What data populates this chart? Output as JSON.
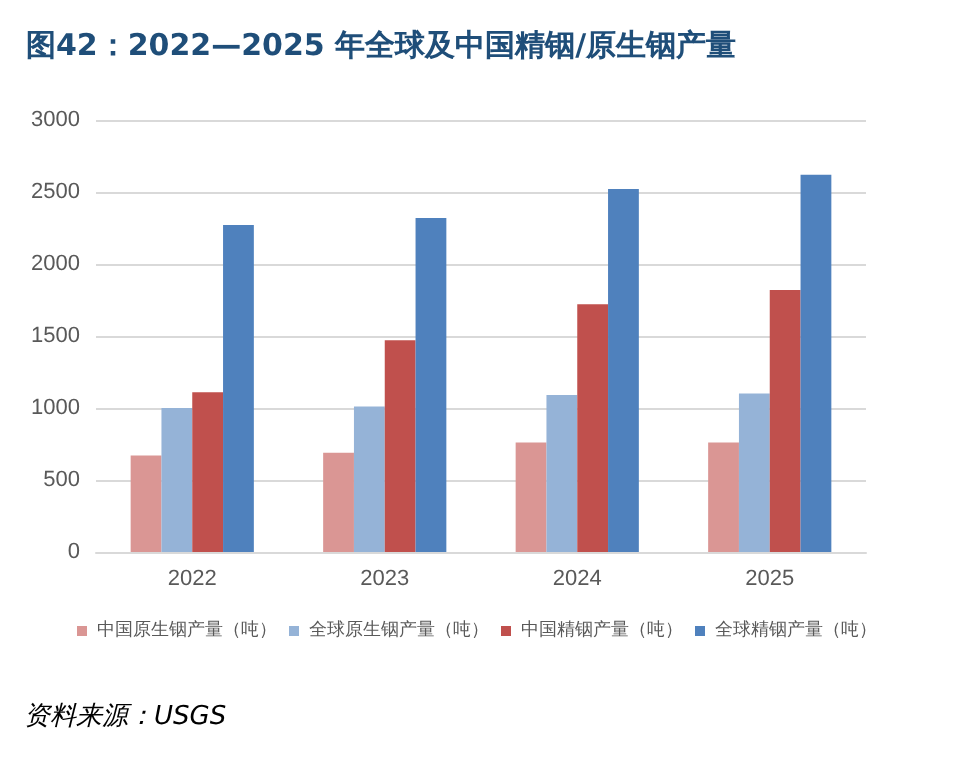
{
  "chart_data": {
    "type": "bar",
    "title": "图42：2022—2025 年全球及中国精铟/原生铟产量",
    "categories": [
      "2022",
      "2023",
      "2024",
      "2025"
    ],
    "series": [
      {
        "name": "中国原生铟产量（吨）",
        "color": "#da9694",
        "values": [
          670,
          690,
          760,
          760
        ]
      },
      {
        "name": "全球原生铟产量（吨）",
        "color": "#95b3d7",
        "values": [
          1000,
          1010,
          1090,
          1100
        ]
      },
      {
        "name": "中国精铟产量（吨）",
        "color": "#c0504d",
        "values": [
          1110,
          1470,
          1720,
          1820
        ]
      },
      {
        "name": "全球精铟产量（吨）",
        "color": "#4f81bd",
        "values": [
          2270,
          2320,
          2520,
          2620
        ]
      }
    ],
    "ylim": [
      0,
      3000
    ],
    "yticks": [
      0,
      500,
      1000,
      1500,
      2000,
      2500,
      3000
    ],
    "grid": "y",
    "legend": "bottom",
    "annotations": [
      "资料来源：USGS"
    ]
  }
}
